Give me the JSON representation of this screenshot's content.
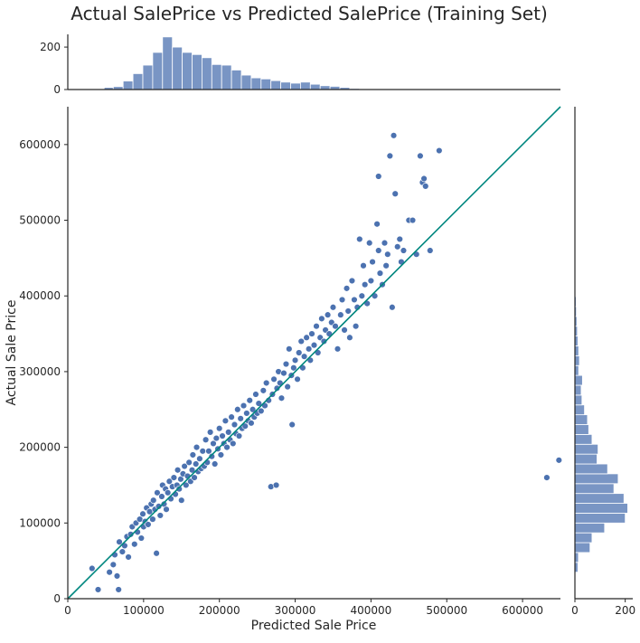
{
  "chart_data": {
    "type": "scatter",
    "title": "Actual SalePrice vs Predicted SalePrice (Training Set)",
    "xlabel": "Predicted Sale Price",
    "ylabel": "Actual Sale Price",
    "xlim": [
      0,
      650000
    ],
    "ylim": [
      0,
      650000
    ],
    "xticks": [
      "0",
      "100000",
      "200000",
      "300000",
      "400000",
      "500000",
      "600000"
    ],
    "yticks": [
      "0",
      "100000",
      "200000",
      "300000",
      "400000",
      "500000",
      "600000"
    ],
    "grid": false,
    "reference_line": {
      "from": [
        0,
        0
      ],
      "to": [
        650000,
        650000
      ],
      "color": "#00877f"
    },
    "marginal_x": {
      "ylim": [
        0,
        260
      ],
      "yticks": [
        "0",
        "200"
      ],
      "bins": [
        {
          "start": 48000,
          "end": 60000,
          "count": 10
        },
        {
          "start": 60000,
          "end": 73000,
          "count": 14
        },
        {
          "start": 73000,
          "end": 86000,
          "count": 40
        },
        {
          "start": 86000,
          "end": 99000,
          "count": 75
        },
        {
          "start": 99000,
          "end": 112000,
          "count": 115
        },
        {
          "start": 112000,
          "end": 125000,
          "count": 175
        },
        {
          "start": 125000,
          "end": 138000,
          "count": 248
        },
        {
          "start": 138000,
          "end": 151000,
          "count": 200
        },
        {
          "start": 151000,
          "end": 164000,
          "count": 175
        },
        {
          "start": 164000,
          "end": 177000,
          "count": 165
        },
        {
          "start": 177000,
          "end": 190000,
          "count": 150
        },
        {
          "start": 190000,
          "end": 203000,
          "count": 118
        },
        {
          "start": 203000,
          "end": 216000,
          "count": 115
        },
        {
          "start": 216000,
          "end": 229000,
          "count": 92
        },
        {
          "start": 229000,
          "end": 242000,
          "count": 68
        },
        {
          "start": 242000,
          "end": 255000,
          "count": 55
        },
        {
          "start": 255000,
          "end": 268000,
          "count": 50
        },
        {
          "start": 268000,
          "end": 281000,
          "count": 42
        },
        {
          "start": 281000,
          "end": 294000,
          "count": 35
        },
        {
          "start": 294000,
          "end": 307000,
          "count": 30
        },
        {
          "start": 307000,
          "end": 320000,
          "count": 35
        },
        {
          "start": 320000,
          "end": 333000,
          "count": 25
        },
        {
          "start": 333000,
          "end": 346000,
          "count": 18
        },
        {
          "start": 346000,
          "end": 359000,
          "count": 15
        },
        {
          "start": 359000,
          "end": 372000,
          "count": 10
        },
        {
          "start": 372000,
          "end": 385000,
          "count": 5
        },
        {
          "start": 385000,
          "end": 398000,
          "count": 3
        }
      ]
    },
    "marginal_y": {
      "xlim": [
        0,
        230
      ],
      "xticks": [
        "0",
        "200"
      ],
      "bins": [
        {
          "start": 35000,
          "end": 48000,
          "count": 12
        },
        {
          "start": 48000,
          "end": 61000,
          "count": 14
        },
        {
          "start": 61000,
          "end": 74000,
          "count": 60
        },
        {
          "start": 74000,
          "end": 87000,
          "count": 68
        },
        {
          "start": 87000,
          "end": 100000,
          "count": 118
        },
        {
          "start": 100000,
          "end": 113000,
          "count": 200
        },
        {
          "start": 113000,
          "end": 126000,
          "count": 210
        },
        {
          "start": 126000,
          "end": 139000,
          "count": 195
        },
        {
          "start": 139000,
          "end": 152000,
          "count": 155
        },
        {
          "start": 152000,
          "end": 165000,
          "count": 172
        },
        {
          "start": 165000,
          "end": 178000,
          "count": 130
        },
        {
          "start": 178000,
          "end": 191000,
          "count": 88
        },
        {
          "start": 191000,
          "end": 204000,
          "count": 92
        },
        {
          "start": 204000,
          "end": 217000,
          "count": 68
        },
        {
          "start": 217000,
          "end": 230000,
          "count": 55
        },
        {
          "start": 230000,
          "end": 243000,
          "count": 50
        },
        {
          "start": 243000,
          "end": 256000,
          "count": 38
        },
        {
          "start": 256000,
          "end": 269000,
          "count": 28
        },
        {
          "start": 269000,
          "end": 282000,
          "count": 25
        },
        {
          "start": 282000,
          "end": 295000,
          "count": 30
        },
        {
          "start": 295000,
          "end": 308000,
          "count": 15
        },
        {
          "start": 308000,
          "end": 321000,
          "count": 18
        },
        {
          "start": 321000,
          "end": 334000,
          "count": 15
        },
        {
          "start": 334000,
          "end": 347000,
          "count": 12
        },
        {
          "start": 347000,
          "end": 360000,
          "count": 10
        },
        {
          "start": 360000,
          "end": 373000,
          "count": 8
        },
        {
          "start": 373000,
          "end": 386000,
          "count": 6
        },
        {
          "start": 386000,
          "end": 399000,
          "count": 5
        },
        {
          "start": 412000,
          "end": 425000,
          "count": 3
        },
        {
          "start": 438000,
          "end": 451000,
          "count": 3
        },
        {
          "start": 451000,
          "end": 464000,
          "count": 3
        },
        {
          "start": 464000,
          "end": 477000,
          "count": 3
        }
      ]
    },
    "points": [
      [
        32000,
        40000
      ],
      [
        40000,
        12000
      ],
      [
        55000,
        35000
      ],
      [
        60000,
        45000
      ],
      [
        62000,
        58000
      ],
      [
        65000,
        30000
      ],
      [
        67000,
        12000
      ],
      [
        68000,
        75000
      ],
      [
        72000,
        62000
      ],
      [
        75000,
        70000
      ],
      [
        78000,
        82000
      ],
      [
        80000,
        55000
      ],
      [
        83000,
        85000
      ],
      [
        85000,
        95000
      ],
      [
        88000,
        72000
      ],
      [
        90000,
        100000
      ],
      [
        92000,
        88000
      ],
      [
        95000,
        105000
      ],
      [
        97000,
        80000
      ],
      [
        99000,
        112000
      ],
      [
        100000,
        95000
      ],
      [
        102000,
        102000
      ],
      [
        104000,
        120000
      ],
      [
        106000,
        98000
      ],
      [
        108000,
        115000
      ],
      [
        110000,
        125000
      ],
      [
        112000,
        105000
      ],
      [
        113000,
        130000
      ],
      [
        115000,
        118000
      ],
      [
        117000,
        60000
      ],
      [
        118000,
        140000
      ],
      [
        120000,
        122000
      ],
      [
        122000,
        110000
      ],
      [
        124000,
        135000
      ],
      [
        125000,
        150000
      ],
      [
        127000,
        125000
      ],
      [
        129000,
        145000
      ],
      [
        130000,
        118000
      ],
      [
        132000,
        140000
      ],
      [
        134000,
        155000
      ],
      [
        136000,
        132000
      ],
      [
        138000,
        148000
      ],
      [
        140000,
        160000
      ],
      [
        142000,
        138000
      ],
      [
        144000,
        150000
      ],
      [
        145000,
        170000
      ],
      [
        147000,
        145000
      ],
      [
        149000,
        158000
      ],
      [
        150000,
        130000
      ],
      [
        152000,
        165000
      ],
      [
        154000,
        175000
      ],
      [
        156000,
        150000
      ],
      [
        158000,
        162000
      ],
      [
        160000,
        180000
      ],
      [
        162000,
        155000
      ],
      [
        164000,
        170000
      ],
      [
        165000,
        190000
      ],
      [
        167000,
        160000
      ],
      [
        169000,
        178000
      ],
      [
        170000,
        200000
      ],
      [
        172000,
        168000
      ],
      [
        174000,
        185000
      ],
      [
        176000,
        172000
      ],
      [
        178000,
        195000
      ],
      [
        180000,
        175000
      ],
      [
        182000,
        210000
      ],
      [
        184000,
        180000
      ],
      [
        186000,
        195000
      ],
      [
        188000,
        220000
      ],
      [
        190000,
        188000
      ],
      [
        192000,
        205000
      ],
      [
        194000,
        178000
      ],
      [
        196000,
        212000
      ],
      [
        198000,
        198000
      ],
      [
        200000,
        225000
      ],
      [
        202000,
        190000
      ],
      [
        204000,
        215000
      ],
      [
        206000,
        205000
      ],
      [
        208000,
        235000
      ],
      [
        210000,
        200000
      ],
      [
        212000,
        220000
      ],
      [
        214000,
        210000
      ],
      [
        216000,
        240000
      ],
      [
        218000,
        205000
      ],
      [
        220000,
        230000
      ],
      [
        222000,
        218000
      ],
      [
        224000,
        250000
      ],
      [
        226000,
        215000
      ],
      [
        228000,
        238000
      ],
      [
        230000,
        225000
      ],
      [
        232000,
        255000
      ],
      [
        234000,
        228000
      ],
      [
        236000,
        245000
      ],
      [
        238000,
        235000
      ],
      [
        240000,
        262000
      ],
      [
        242000,
        232000
      ],
      [
        244000,
        250000
      ],
      [
        246000,
        240000
      ],
      [
        248000,
        270000
      ],
      [
        250000,
        245000
      ],
      [
        252000,
        258000
      ],
      [
        255000,
        248000
      ],
      [
        258000,
        275000
      ],
      [
        260000,
        255000
      ],
      [
        262000,
        285000
      ],
      [
        265000,
        262000
      ],
      [
        268000,
        148000
      ],
      [
        270000,
        270000
      ],
      [
        272000,
        290000
      ],
      [
        275000,
        150000
      ],
      [
        276000,
        278000
      ],
      [
        278000,
        300000
      ],
      [
        280000,
        285000
      ],
      [
        282000,
        265000
      ],
      [
        285000,
        298000
      ],
      [
        288000,
        310000
      ],
      [
        290000,
        280000
      ],
      [
        292000,
        330000
      ],
      [
        295000,
        295000
      ],
      [
        296000,
        230000
      ],
      [
        298000,
        305000
      ],
      [
        300000,
        315000
      ],
      [
        303000,
        290000
      ],
      [
        305000,
        325000
      ],
      [
        308000,
        340000
      ],
      [
        310000,
        305000
      ],
      [
        312000,
        320000
      ],
      [
        315000,
        345000
      ],
      [
        318000,
        330000
      ],
      [
        320000,
        315000
      ],
      [
        322000,
        350000
      ],
      [
        325000,
        335000
      ],
      [
        328000,
        360000
      ],
      [
        330000,
        325000
      ],
      [
        333000,
        345000
      ],
      [
        335000,
        370000
      ],
      [
        338000,
        340000
      ],
      [
        340000,
        355000
      ],
      [
        343000,
        375000
      ],
      [
        345000,
        350000
      ],
      [
        348000,
        365000
      ],
      [
        350000,
        385000
      ],
      [
        353000,
        360000
      ],
      [
        356000,
        330000
      ],
      [
        360000,
        375000
      ],
      [
        362000,
        395000
      ],
      [
        365000,
        355000
      ],
      [
        368000,
        410000
      ],
      [
        370000,
        380000
      ],
      [
        372000,
        345000
      ],
      [
        375000,
        420000
      ],
      [
        378000,
        395000
      ],
      [
        380000,
        360000
      ],
      [
        382000,
        385000
      ],
      [
        385000,
        475000
      ],
      [
        388000,
        400000
      ],
      [
        390000,
        440000
      ],
      [
        392000,
        415000
      ],
      [
        395000,
        390000
      ],
      [
        398000,
        470000
      ],
      [
        400000,
        420000
      ],
      [
        402000,
        445000
      ],
      [
        405000,
        400000
      ],
      [
        408000,
        495000
      ],
      [
        410000,
        460000
      ],
      [
        412000,
        430000
      ],
      [
        415000,
        415000
      ],
      [
        418000,
        470000
      ],
      [
        420000,
        440000
      ],
      [
        422000,
        455000
      ],
      [
        425000,
        585000
      ],
      [
        428000,
        385000
      ],
      [
        430000,
        612000
      ],
      [
        432000,
        535000
      ],
      [
        435000,
        465000
      ],
      [
        438000,
        475000
      ],
      [
        440000,
        445000
      ],
      [
        443000,
        460000
      ],
      [
        450000,
        500000
      ],
      [
        455000,
        500000
      ],
      [
        460000,
        455000
      ],
      [
        465000,
        585000
      ],
      [
        468000,
        550000
      ],
      [
        470000,
        555000
      ],
      [
        472000,
        545000
      ],
      [
        478000,
        460000
      ],
      [
        490000,
        592000
      ],
      [
        410000,
        558000
      ],
      [
        632000,
        160000
      ],
      [
        648000,
        183000
      ]
    ]
  }
}
